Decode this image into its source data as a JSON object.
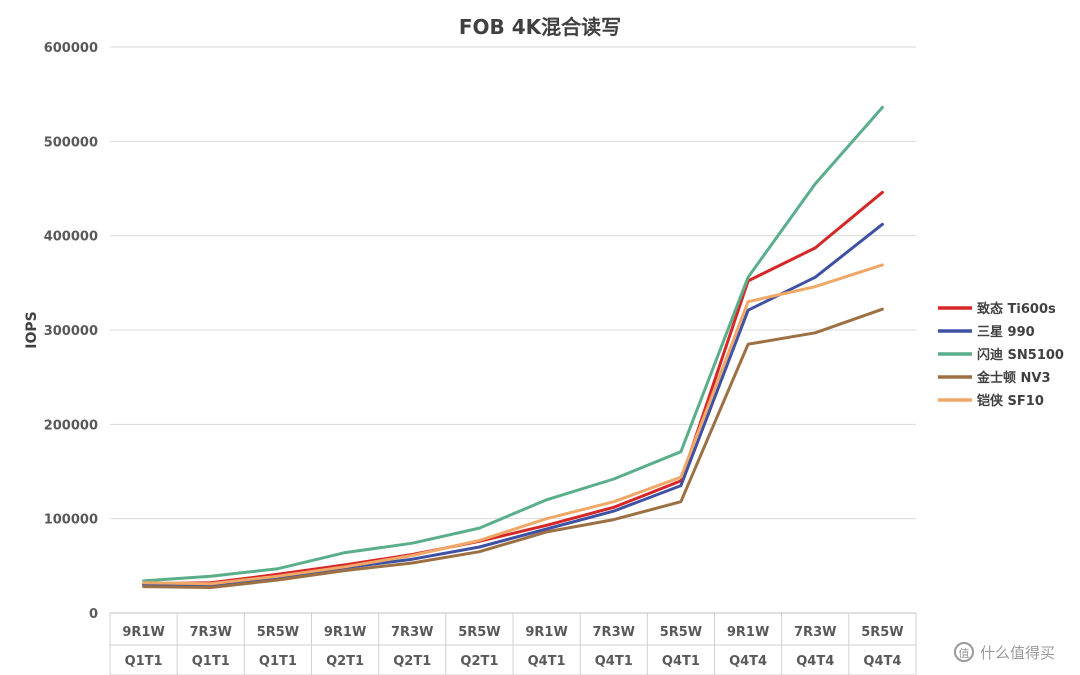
{
  "watermark": "什么值得买",
  "chart_data": {
    "type": "line",
    "title": "FOB 4K混合读写",
    "ylabel": "IOPS",
    "xlabel": "",
    "ylim": [
      0,
      600000
    ],
    "yticks": [
      "0",
      "100000",
      "200000",
      "300000",
      "400000",
      "500000",
      "600000"
    ],
    "grid": true,
    "legend_position": "right",
    "categories": [
      [
        "9R1W",
        "Q1T1"
      ],
      [
        "7R3W",
        "Q1T1"
      ],
      [
        "5R5W",
        "Q1T1"
      ],
      [
        "9R1W",
        "Q2T1"
      ],
      [
        "7R3W",
        "Q2T1"
      ],
      [
        "5R5W",
        "Q2T1"
      ],
      [
        "9R1W",
        "Q4T1"
      ],
      [
        "7R3W",
        "Q4T1"
      ],
      [
        "5R5W",
        "Q4T1"
      ],
      [
        "9R1W",
        "Q4T4"
      ],
      [
        "7R3W",
        "Q4T4"
      ],
      [
        "5R5W",
        "Q4T4"
      ]
    ],
    "series": [
      {
        "name": "致态 Ti600s",
        "color": "#D62728",
        "values": [
          31000,
          32000,
          41000,
          51000,
          62000,
          76000,
          93000,
          112000,
          140000,
          352000,
          387000,
          446000
        ]
      },
      {
        "name": "三星 990",
        "color": "#3F51A3",
        "values": [
          30000,
          30000,
          38000,
          48000,
          57000,
          70000,
          89000,
          108000,
          135000,
          321000,
          356000,
          412000
        ]
      },
      {
        "name": "闪迪 SN5100",
        "color": "#5BAE8A",
        "values": [
          34000,
          39000,
          47000,
          64000,
          74000,
          90000,
          120000,
          142000,
          171000,
          356000,
          455000,
          536000
        ]
      },
      {
        "name": "金士顿 NV3",
        "color": "#9C7043",
        "values": [
          28000,
          27000,
          35000,
          45000,
          53000,
          65000,
          86000,
          99000,
          118000,
          285000,
          297000,
          322000
        ]
      },
      {
        "name": "铠侠 SF10",
        "color": "#F0A868",
        "values": [
          32000,
          31000,
          39000,
          49000,
          61000,
          77000,
          100000,
          118000,
          144000,
          330000,
          346000,
          369000
        ]
      }
    ]
  }
}
